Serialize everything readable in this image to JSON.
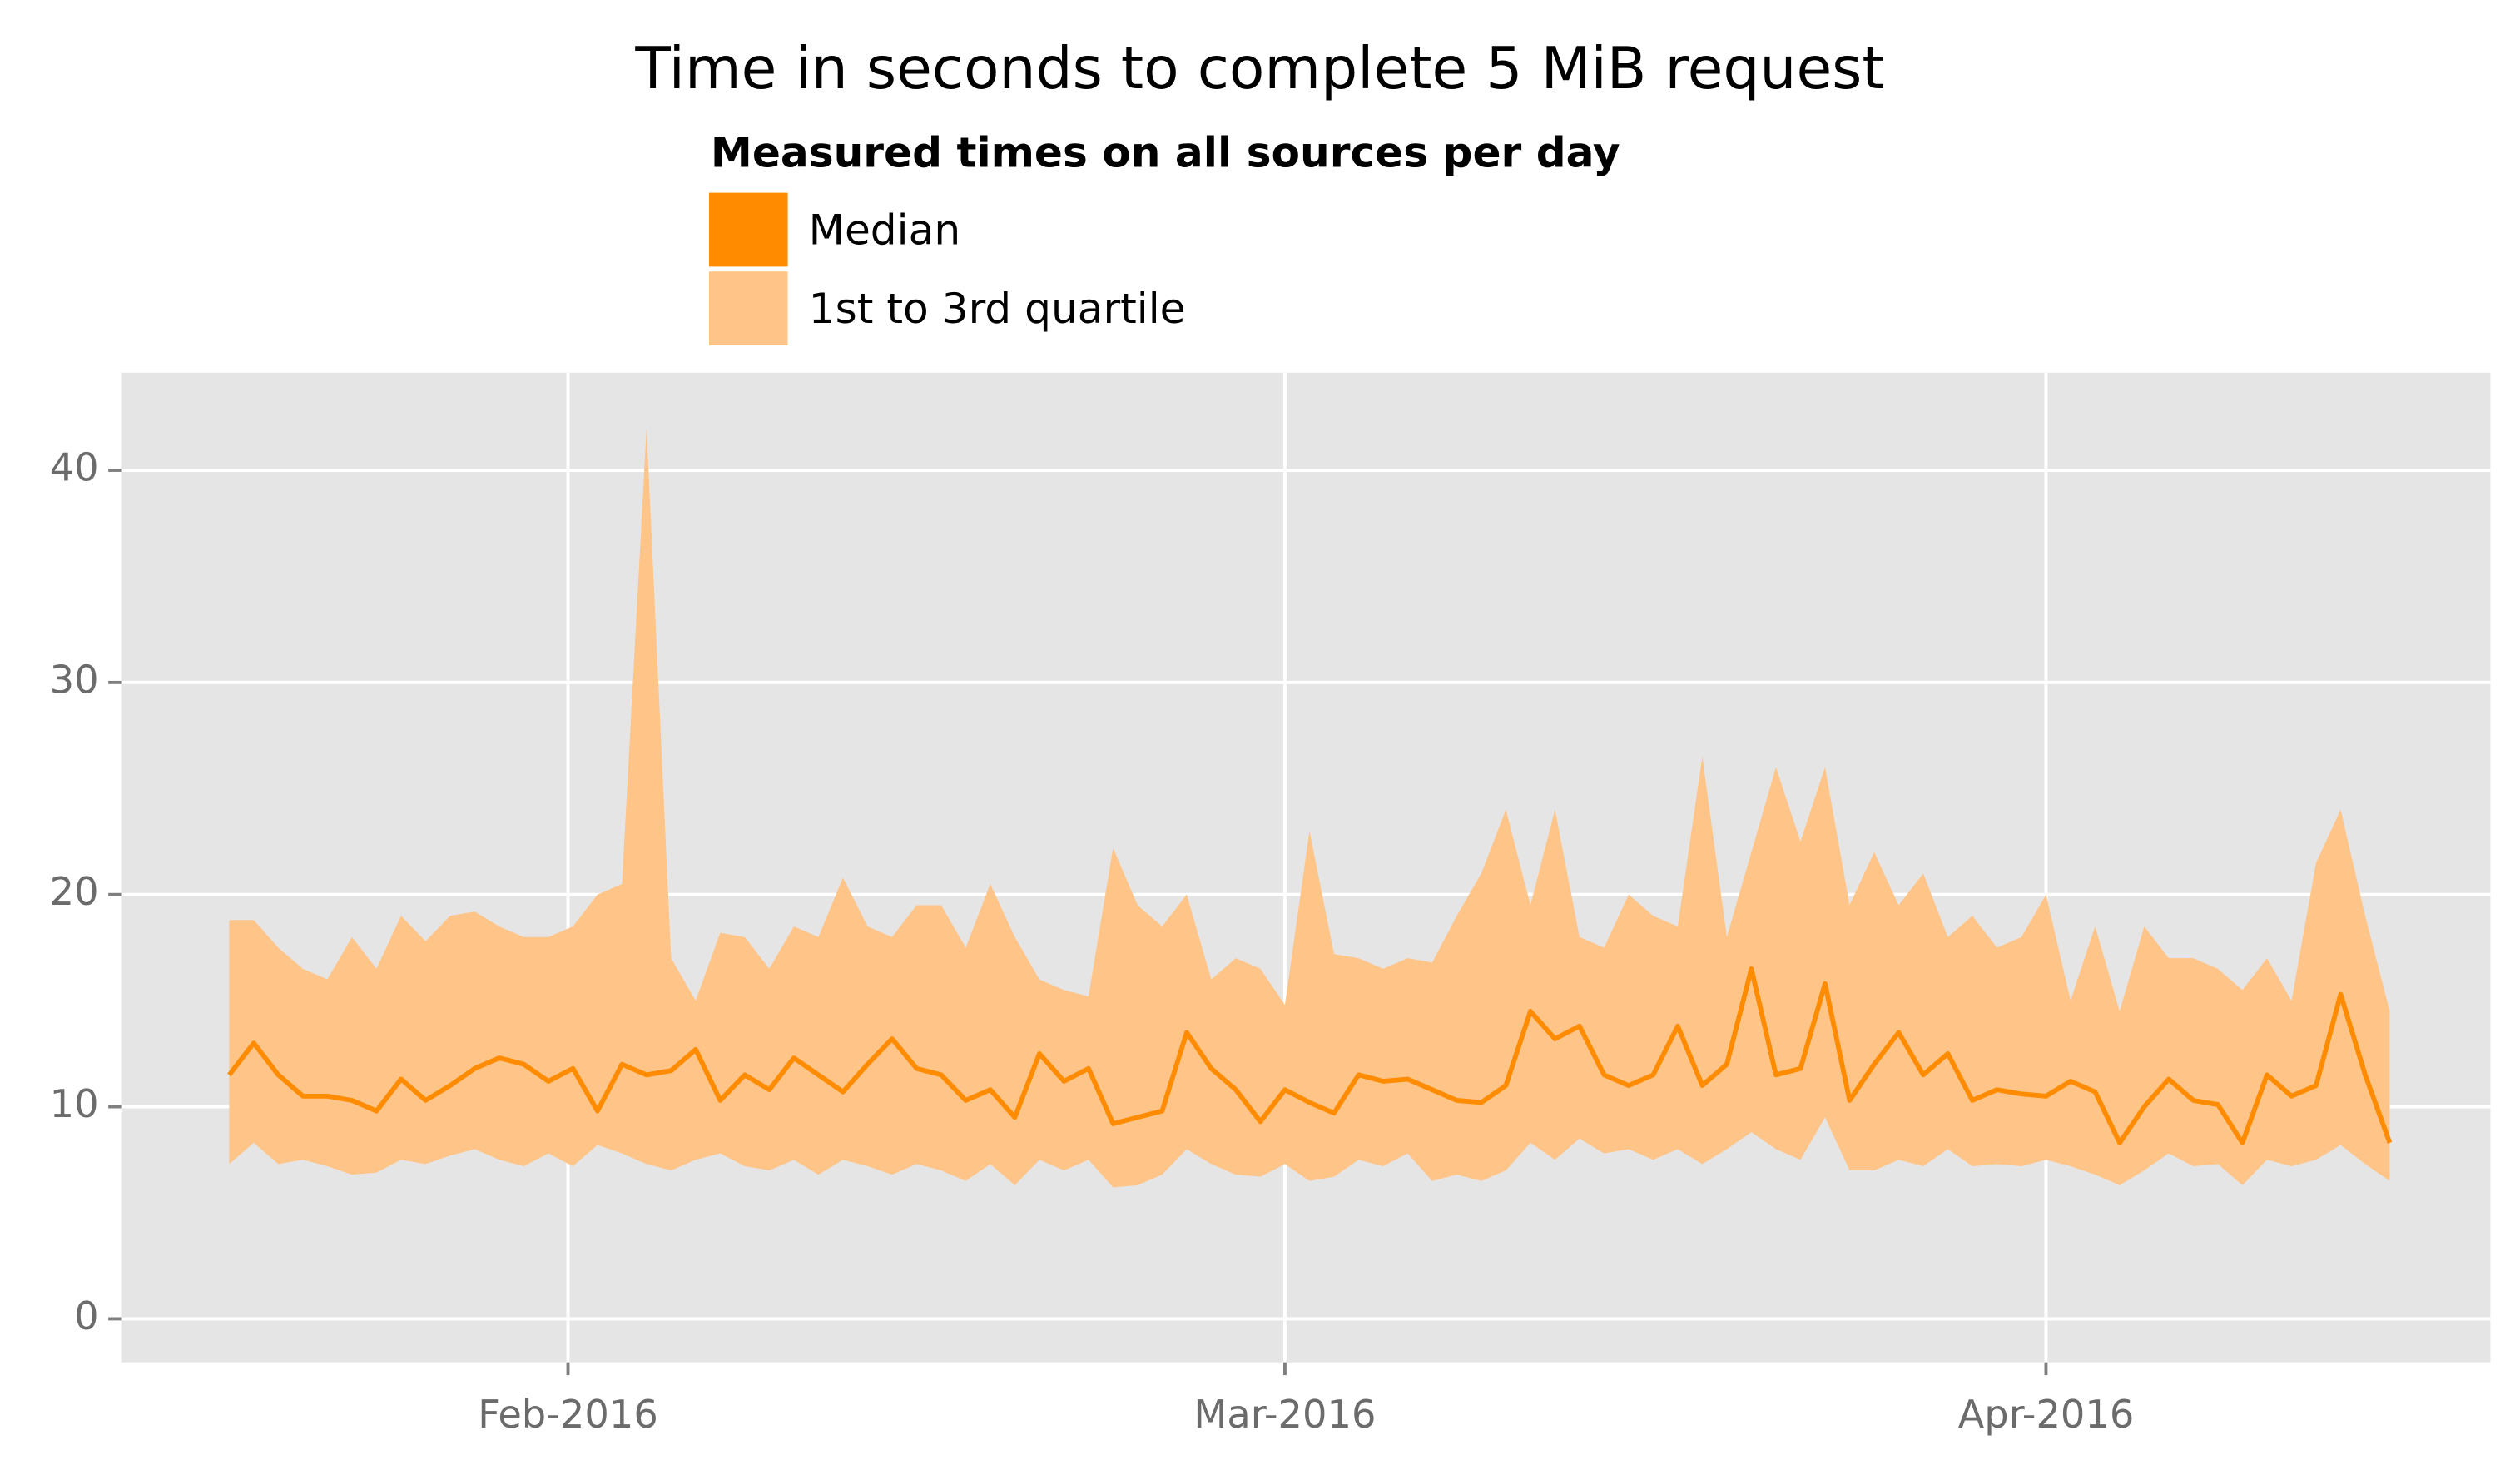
{
  "chart_data": {
    "type": "line",
    "title": "Time in seconds to complete 5 MiB request",
    "legend_title": "Measured times on all sources per day",
    "series": [
      {
        "name": "Median",
        "color": "#ff8c00",
        "values": [
          11.5,
          13,
          11.5,
          10.5,
          10.5,
          10.3,
          9.8,
          11.3,
          10.3,
          11,
          11.8,
          12.3,
          12,
          11.2,
          11.8,
          9.8,
          12,
          11.5,
          11.7,
          12.7,
          10.3,
          11.5,
          10.8,
          12.3,
          11.5,
          10.7,
          12,
          13.2,
          11.8,
          11.5,
          10.3,
          10.8,
          9.5,
          12.5,
          11.2,
          11.8,
          9.2,
          9.5,
          9.8,
          13.5,
          11.8,
          10.8,
          9.3,
          10.8,
          10.2,
          9.7,
          11.5,
          11.2,
          11.3,
          10.8,
          10.3,
          10.2,
          11,
          14.5,
          13.2,
          13.8,
          11.5,
          11,
          11.5,
          13.8,
          11,
          12,
          16.5,
          11.5,
          11.8,
          15.8,
          10.3,
          12,
          13.5,
          11.5,
          12.5,
          10.3,
          10.8,
          10.6,
          10.5,
          11.2,
          10.7,
          8.3,
          10,
          11.3,
          10.3,
          10.1,
          8.3,
          11.5,
          10.5,
          11,
          15.3,
          11.5,
          8.3
        ]
      }
    ],
    "band": {
      "name": "1st to 3rd quartile",
      "color": "#fec488",
      "lower": [
        7.3,
        8.3,
        7.3,
        7.5,
        7.2,
        6.8,
        6.9,
        7.5,
        7.3,
        7.7,
        8,
        7.5,
        7.2,
        7.8,
        7.2,
        8.2,
        7.8,
        7.3,
        7,
        7.5,
        7.8,
        7.2,
        7,
        7.5,
        6.8,
        7.5,
        7.2,
        6.8,
        7.3,
        7,
        6.5,
        7.3,
        6.3,
        7.5,
        7,
        7.5,
        6.2,
        6.3,
        6.8,
        8,
        7.3,
        6.8,
        6.7,
        7.3,
        6.5,
        6.7,
        7.5,
        7.2,
        7.8,
        6.5,
        6.8,
        6.5,
        7,
        8.3,
        7.5,
        8.5,
        7.8,
        8,
        7.5,
        8,
        7.3,
        8,
        8.8,
        8,
        7.5,
        9.5,
        7,
        7,
        7.5,
        7.2,
        8,
        7.2,
        7.3,
        7.2,
        7.5,
        7.2,
        6.8,
        6.3,
        7,
        7.8,
        7.2,
        7.3,
        6.3,
        7.5,
        7.2,
        7.5,
        8.2,
        7.3,
        6.5
      ],
      "upper": [
        18.8,
        18.8,
        17.5,
        16.5,
        16,
        18,
        16.5,
        19,
        17.8,
        19,
        19.2,
        18.5,
        18,
        18,
        18.5,
        20,
        20.5,
        42,
        17,
        15,
        18.2,
        18,
        16.5,
        18.5,
        18,
        20.8,
        18.5,
        18,
        19.5,
        19.5,
        17.5,
        20.5,
        18,
        16,
        15.5,
        15.2,
        22.2,
        19.5,
        18.5,
        20,
        16,
        17,
        16.5,
        14.8,
        23,
        17.2,
        17,
        16.5,
        17,
        16.8,
        19,
        21,
        24,
        19.5,
        24,
        18,
        17.5,
        20,
        19,
        18.5,
        26.5,
        18,
        22,
        26,
        22.5,
        26,
        19.5,
        22,
        19.5,
        21,
        18,
        19,
        17.5,
        18,
        20,
        15,
        18.5,
        14.5,
        18.5,
        17,
        17,
        16.5,
        15.5,
        17,
        15,
        21.5,
        24,
        19,
        14.5
      ]
    },
    "xlim": [
      -4.4,
      92.1
    ],
    "xticks": [
      {
        "value": 13.8,
        "label": "Feb-2016"
      },
      {
        "value": 43,
        "label": "Mar-2016"
      },
      {
        "value": 74,
        "label": "Apr-2016"
      }
    ],
    "ylim": [
      -2.05,
      44.6
    ],
    "yticks": [
      0,
      10,
      20,
      30,
      40
    ],
    "grid": true
  }
}
